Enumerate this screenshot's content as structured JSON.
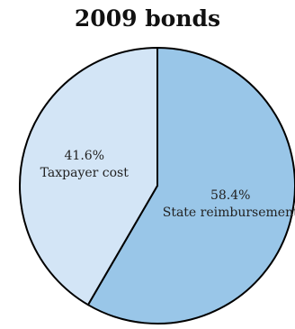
{
  "chart_data": {
    "type": "pie",
    "title": "2009 bonds",
    "slices": [
      {
        "label": "State reimbursement",
        "value": 58.4,
        "display": "58.4%",
        "color": "#99c6e8"
      },
      {
        "label": "Taxpayer cost",
        "value": 41.6,
        "display": "41.6%",
        "color": "#d3e5f6"
      }
    ],
    "start": "12 o'clock",
    "direction": "clockwise",
    "outline_color": "#000000"
  }
}
